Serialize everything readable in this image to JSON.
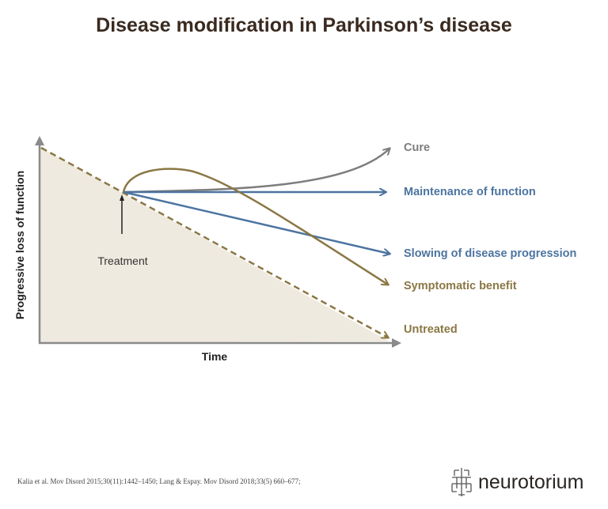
{
  "title": "Disease modification in Parkinson’s disease",
  "axes": {
    "xlabel": "Time",
    "ylabel": "Progressive loss of function"
  },
  "annotation": "Treatment",
  "curves": [
    {
      "label": "Cure",
      "color": "#7d7d7d"
    },
    {
      "label": "Maintenance of function",
      "color": "#4c74a0"
    },
    {
      "label": "Slowing of disease progression",
      "color": "#4c74a0"
    },
    {
      "label": "Symptomatic benefit",
      "color": "#8a7744"
    },
    {
      "label": "Untreated",
      "color": "#8a7744",
      "style": "dashed"
    }
  ],
  "fill_color": "#efeadf",
  "citation": "Kalia et al. Mov Disord 2015;30(11):1442–1450; Lang & Espay. Mov Disord 2018;33(5) 660–677;",
  "logo": {
    "text": "neurotorium",
    "icon": "neuron-grid-icon"
  }
}
